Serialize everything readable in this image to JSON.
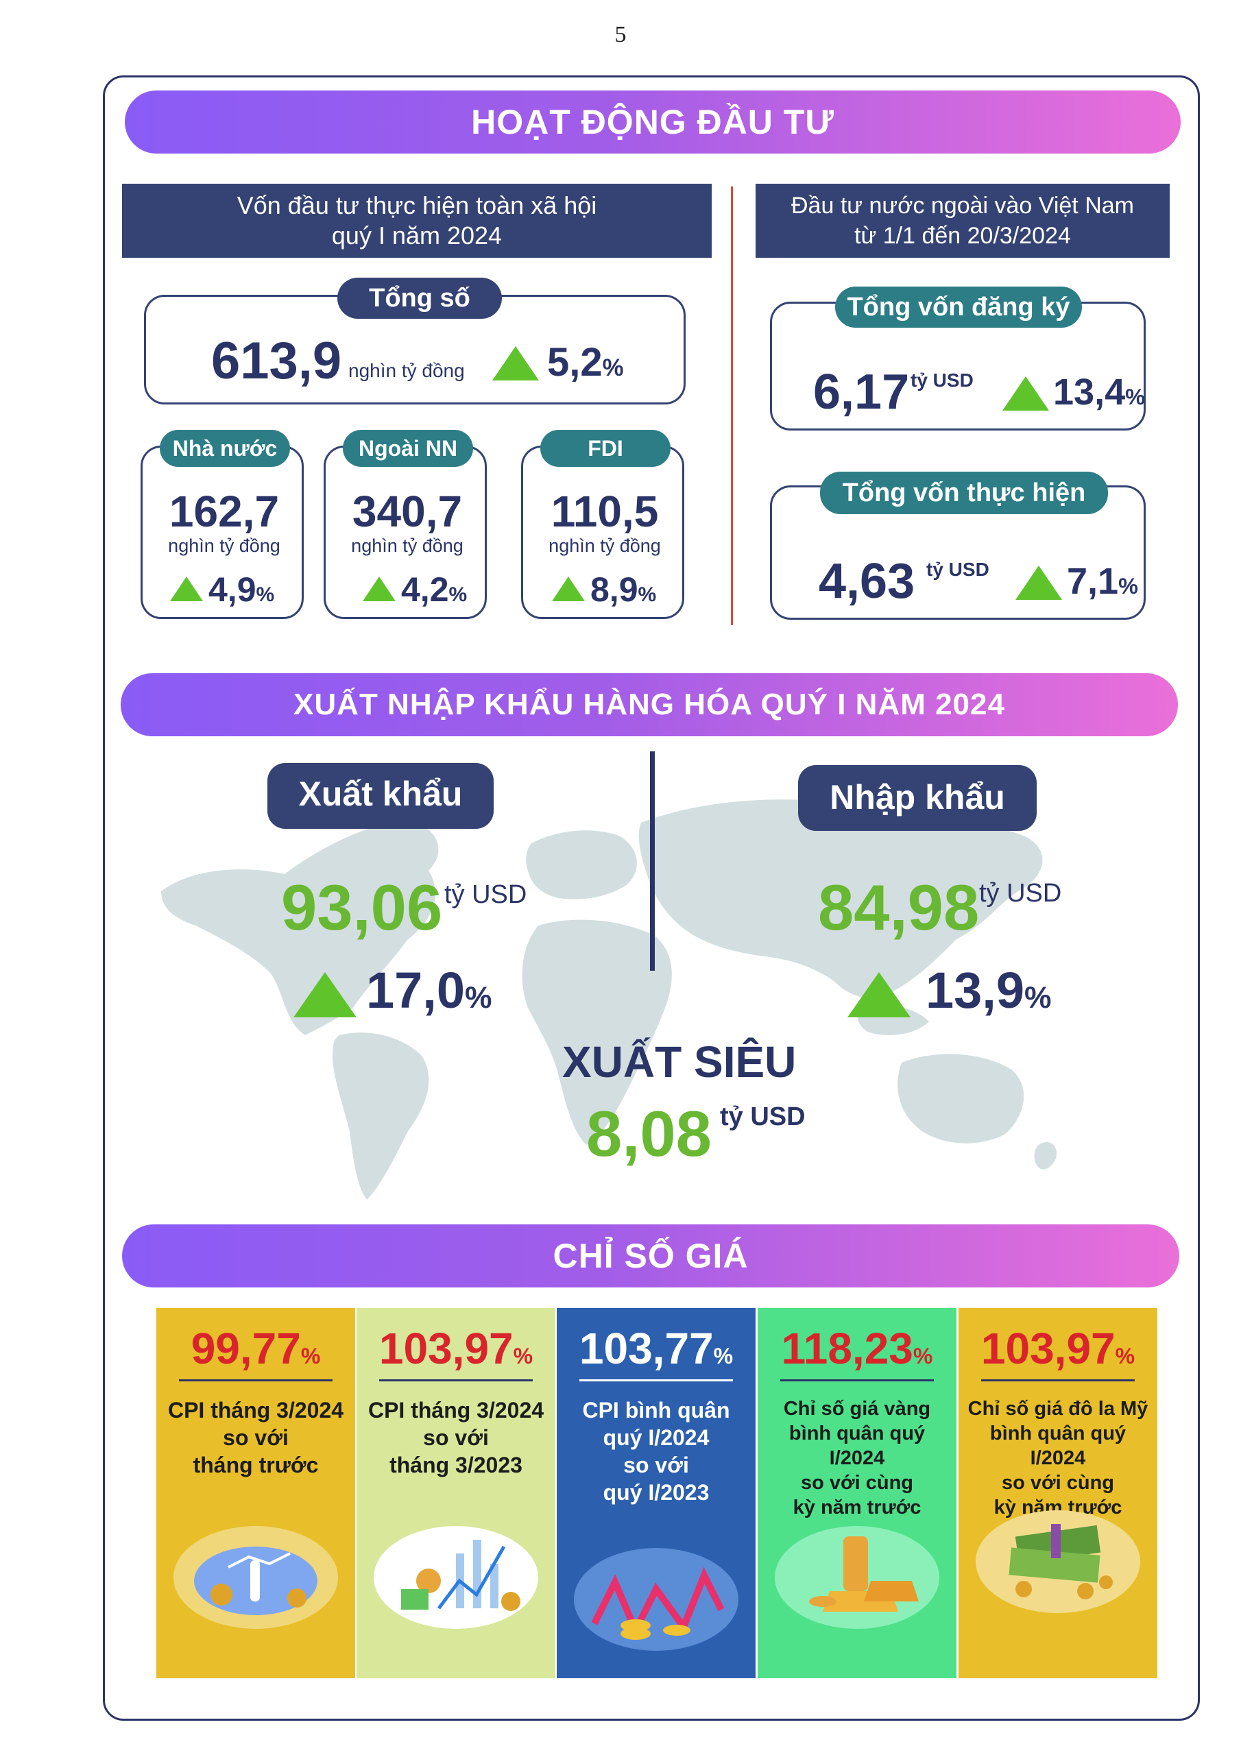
{
  "page_number": "5",
  "investment": {
    "banner": "HOẠT ĐỘNG ĐẦU TƯ",
    "domestic_header_line1": "Vốn đầu tư thực hiện toàn xã hội",
    "domestic_header_line2": "quý I năm 2024",
    "total": {
      "label": "Tổng số",
      "value": "613,9",
      "unit": "nghìn tỷ đồng",
      "growth": "5,2",
      "pct": "%"
    },
    "items": [
      {
        "label": "Nhà nước",
        "value": "162,7",
        "unit": "nghìn tỷ đồng",
        "growth": "4,9",
        "pct": "%"
      },
      {
        "label": "Ngoài NN",
        "value": "340,7",
        "unit": "nghìn tỷ đồng",
        "growth": "4,2",
        "pct": "%"
      },
      {
        "label": "FDI",
        "value": "110,5",
        "unit": "nghìn tỷ đồng",
        "growth": "8,9",
        "pct": "%"
      }
    ],
    "foreign_header_line1": "Đầu tư nước ngoài vào Việt Nam",
    "foreign_header_line2": "từ 1/1 đến 20/3/2024",
    "registered": {
      "label": "Tổng vốn đăng ký",
      "value": "6,17",
      "unit": "tỷ USD",
      "growth": "13,4",
      "pct": "%"
    },
    "realized": {
      "label": "Tổng vốn thực hiện",
      "value": "4,63",
      "unit": "tỷ USD",
      "growth": "7,1",
      "pct": "%"
    }
  },
  "trade": {
    "banner": "XUẤT NHẬP KHẨU HÀNG HÓA QUÝ I NĂM 2024",
    "export": {
      "label": "Xuất khẩu",
      "value": "93,06",
      "unit": "tỷ USD",
      "growth": "17,0",
      "pct": "%"
    },
    "import": {
      "label": "Nhập khẩu",
      "value": "84,98",
      "unit": "tỷ USD",
      "growth": "13,9",
      "pct": "%"
    },
    "surplus": {
      "label": "XUẤT SIÊU",
      "value": "8,08",
      "unit": "tỷ USD"
    }
  },
  "prices": {
    "banner": "CHỈ SỐ GIÁ",
    "cards": [
      {
        "value": "99,77",
        "pct": "%",
        "lines": [
          "CPI tháng 3/2024",
          "so với",
          "tháng trước"
        ],
        "bg": "#e8bf2a",
        "value_color": "#d8242a"
      },
      {
        "value": "103,97",
        "pct": "%",
        "lines": [
          "CPI tháng 3/2024",
          "so với",
          "tháng 3/2023"
        ],
        "bg": "#d9e79a",
        "value_color": "#d8242a"
      },
      {
        "value": "103,77",
        "pct": "%",
        "lines": [
          "CPI bình quân",
          "quý I/2024",
          "so với",
          "quý I/2023"
        ],
        "bg": "#2c5fae",
        "value_color": "#ffffff"
      },
      {
        "value": "118,23",
        "pct": "%",
        "lines": [
          "Chỉ số giá vàng",
          "bình quân quý I/2024",
          "so với cùng",
          "kỳ năm trước"
        ],
        "bg": "#4fe08a",
        "value_color": "#d8242a"
      },
      {
        "value": "103,97",
        "pct": "%",
        "lines": [
          "Chỉ số giá đô la Mỹ",
          "bình quân quý I/2024",
          "so với cùng",
          "kỳ năm trước"
        ],
        "bg": "#e8bf2a",
        "value_color": "#d8242a"
      }
    ]
  },
  "icons": [
    "up-arrow-icon",
    "world-map-icon",
    "coins-icon",
    "gold-bars-icon",
    "dollar-bills-icon",
    "chart-illustration-icon"
  ]
}
